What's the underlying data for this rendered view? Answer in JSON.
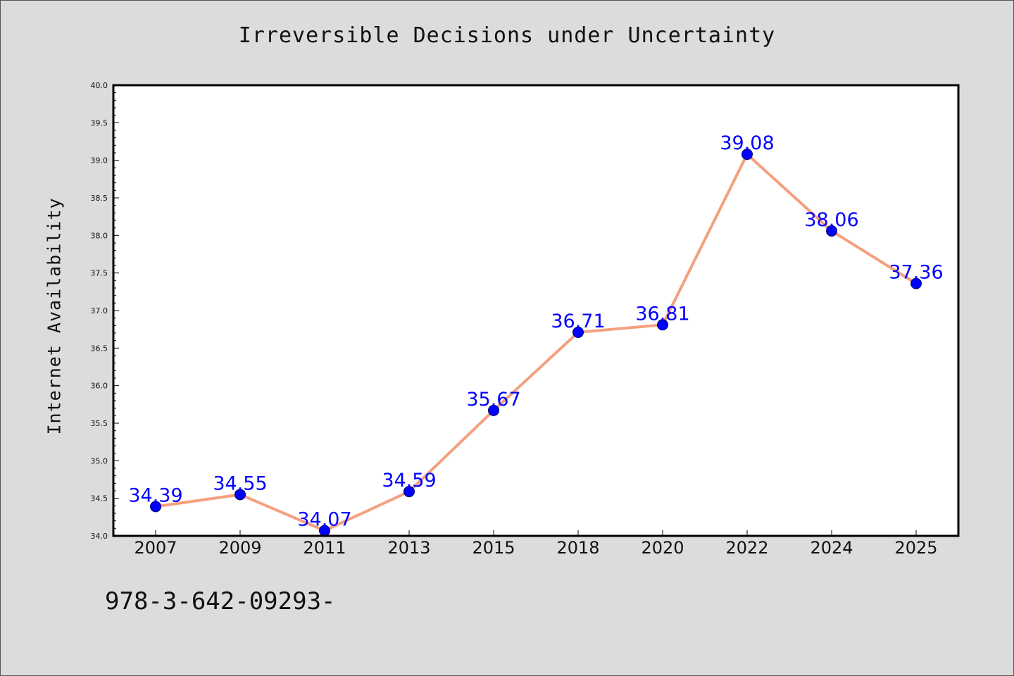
{
  "chart_data": {
    "type": "line",
    "title": "Irreversible Decisions under Uncertainty",
    "xlabel": "",
    "ylabel": "Internet Availability",
    "categories": [
      "2007",
      "2009",
      "2011",
      "2013",
      "2015",
      "2018",
      "2020",
      "2022",
      "2024",
      "2025"
    ],
    "values": [
      34.39,
      34.55,
      34.07,
      34.59,
      35.67,
      36.71,
      36.81,
      39.08,
      38.06,
      37.36
    ],
    "data_labels": [
      "34.39",
      "34.55",
      "34.07",
      "34.59",
      "35.67",
      "36.71",
      "36.81",
      "39.08",
      "38.06",
      "37.36"
    ],
    "ylim": [
      34.0,
      40.0
    ],
    "yticks": [
      "34.0",
      "34.5",
      "35.0",
      "35.5",
      "36.0",
      "36.5",
      "37.0",
      "37.5",
      "38.0",
      "38.5",
      "39.0",
      "39.5",
      "40.0"
    ],
    "grid": false,
    "line_color": "#f4a07f",
    "marker_color": "#0000ff",
    "label_color": "#0000ff",
    "background_color": "#dcdcdc",
    "plot_background_color": "#ffffff"
  },
  "footer_text": "978-3-642-09293-"
}
